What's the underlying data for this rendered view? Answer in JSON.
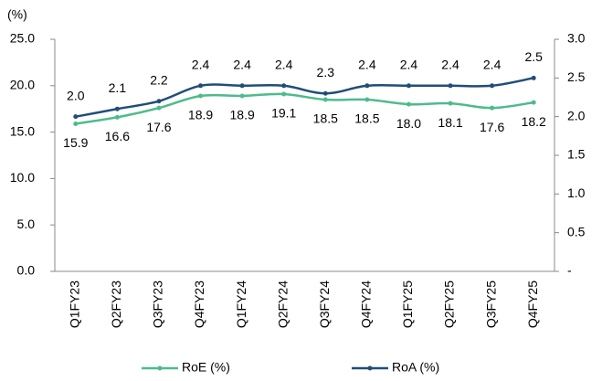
{
  "chart_data": {
    "type": "line",
    "y_label": "(%)",
    "categories": [
      "Q1FY23",
      "Q2FY23",
      "Q3FY23",
      "Q4FY23",
      "Q1FY24",
      "Q2FY24",
      "Q3FY24",
      "Q4FY24",
      "Q1FY25",
      "Q2FY25",
      "Q3FY25",
      "Q4FY25"
    ],
    "series": [
      {
        "name": "RoE (%)",
        "color": "#4dbb8c",
        "values": [
          15.9,
          16.6,
          17.6,
          18.9,
          18.9,
          19.1,
          18.5,
          18.5,
          18.0,
          18.1,
          17.6,
          18.2
        ],
        "value_labels": [
          "15.9",
          "16.6",
          "17.6",
          "18.9",
          "18.9",
          "19.1",
          "18.5",
          "18.5",
          "18.0",
          "18.1",
          "17.6",
          "18.2"
        ]
      },
      {
        "name": "RoA (%)",
        "color": "#1f4e79",
        "axis": "y2",
        "values": [
          2.0,
          2.1,
          2.2,
          2.4,
          2.4,
          2.4,
          2.3,
          2.4,
          2.4,
          2.4,
          2.4,
          2.5
        ],
        "value_labels": [
          "2.0",
          "2.1",
          "2.2",
          "2.4",
          "2.4",
          "2.4",
          "2.3",
          "2.4",
          "2.4",
          "2.4",
          "2.4",
          "2.5"
        ]
      }
    ],
    "ylim": [
      0,
      25
    ],
    "yticks": [
      {
        "value": 0,
        "label": "0.0"
      },
      {
        "value": 5,
        "label": "5.0"
      },
      {
        "value": 10,
        "label": "10.0"
      },
      {
        "value": 15,
        "label": "15.0"
      },
      {
        "value": 20,
        "label": "20.0"
      },
      {
        "value": 25,
        "label": "25.0"
      }
    ],
    "y2lim": [
      0,
      3
    ],
    "y2ticks": [
      {
        "value": 0,
        "label": "-"
      },
      {
        "value": 0.5,
        "label": "0.5"
      },
      {
        "value": 1,
        "label": "1.0"
      },
      {
        "value": 1.5,
        "label": "1.5"
      },
      {
        "value": 2,
        "label": "2.0"
      },
      {
        "value": 2.5,
        "label": "2.5"
      },
      {
        "value": 3,
        "label": "3.0"
      }
    ],
    "grid": false,
    "smooth": true,
    "legend": "bottom"
  }
}
